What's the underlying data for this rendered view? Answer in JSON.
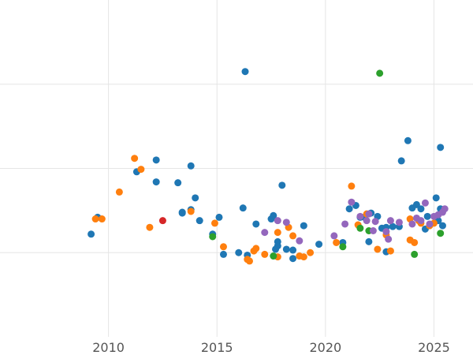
{
  "chart_data": {
    "type": "scatter",
    "title": "",
    "xlabel": "",
    "ylabel": "",
    "xlim": [
      2005,
      2026.8
    ],
    "ylim": [
      -1.0,
      3.0
    ],
    "xticks": [
      2010,
      2015,
      2020,
      2025
    ],
    "xtick_labels": [
      "2010",
      "2015",
      "2020",
      "2025"
    ],
    "ygrid": [
      0.0,
      1.0,
      2.0
    ],
    "grid": true,
    "legend": "none",
    "colors": {
      "blue": "#1f77b4",
      "orange": "#ff7f0e",
      "green": "#2ca02c",
      "red": "#d62728",
      "purple": "#9467bd"
    },
    "series": [
      {
        "name": "blue",
        "color": "#1f77b4",
        "x": [
          2009.2,
          2009.5,
          2011.3,
          2012.2,
          2012.2,
          2013.2,
          2013.4,
          2013.4,
          2013.8,
          2013.8,
          2014.0,
          2014.2,
          2014.8,
          2015.1,
          2015.3,
          2016.0,
          2016.2,
          2016.3,
          2016.4,
          2016.8,
          2017.5,
          2017.6,
          2017.7,
          2017.8,
          2017.8,
          2018.0,
          2018.2,
          2018.5,
          2018.5,
          2019.0,
          2019.7,
          2020.8,
          2021.1,
          2021.4,
          2021.6,
          2021.8,
          2022.0,
          2022.1,
          2022.4,
          2022.6,
          2022.8,
          2022.8,
          2023.1,
          2023.4,
          2023.5,
          2023.8,
          2024.0,
          2024.2,
          2024.4,
          2024.6,
          2024.7,
          2025.1,
          2025.2,
          2025.3,
          2025.3,
          2025.4
        ],
        "y": [
          0.22,
          0.42,
          0.96,
          1.1,
          0.84,
          0.83,
          0.47,
          0.48,
          0.51,
          1.03,
          0.65,
          0.38,
          0.22,
          0.42,
          -0.02,
          0.0,
          0.53,
          2.15,
          -0.03,
          0.34,
          0.4,
          0.44,
          0.04,
          0.13,
          0.08,
          0.8,
          0.04,
          -0.07,
          0.03,
          0.32,
          0.1,
          0.12,
          0.52,
          0.56,
          0.42,
          0.42,
          0.13,
          0.47,
          0.43,
          0.29,
          0.01,
          0.3,
          0.31,
          0.31,
          1.09,
          1.33,
          0.53,
          0.57,
          0.52,
          0.28,
          0.43,
          0.65,
          0.38,
          1.25,
          0.52,
          0.32
        ]
      },
      {
        "name": "orange",
        "color": "#ff7f0e",
        "x": [
          2009.4,
          2009.7,
          2010.5,
          2011.2,
          2011.5,
          2011.9,
          2013.8,
          2014.9,
          2015.3,
          2016.4,
          2016.5,
          2016.7,
          2016.8,
          2017.2,
          2017.8,
          2017.8,
          2018.3,
          2018.5,
          2018.8,
          2019.0,
          2019.3,
          2020.5,
          2021.2,
          2021.5,
          2021.9,
          2022.4,
          2022.8,
          2023.0,
          2023.9,
          2023.9,
          2024.1,
          2024.3,
          2024.4,
          2024.8,
          2025.0
        ],
        "y": [
          0.4,
          0.4,
          0.72,
          1.12,
          0.99,
          0.3,
          0.49,
          0.35,
          0.07,
          -0.08,
          -0.1,
          0.02,
          0.05,
          -0.02,
          0.24,
          -0.05,
          0.3,
          0.2,
          -0.04,
          -0.05,
          0.0,
          0.12,
          0.79,
          0.33,
          0.46,
          0.04,
          0.21,
          0.02,
          0.4,
          0.15,
          0.12,
          0.38,
          0.35,
          0.32,
          0.35
        ]
      },
      {
        "name": "green",
        "color": "#2ca02c",
        "x": [
          2014.8,
          2017.6,
          2020.8,
          2021.6,
          2022.0,
          2022.5,
          2024.1,
          2025.3
        ],
        "y": [
          0.19,
          -0.04,
          0.07,
          0.29,
          0.26,
          2.13,
          -0.02,
          0.23
        ]
      },
      {
        "name": "red",
        "color": "#d62728",
        "x": [
          2012.5
        ],
        "y": [
          0.38
        ]
      },
      {
        "name": "purple",
        "color": "#9467bd",
        "x": [
          2017.2,
          2017.8,
          2018.2,
          2018.8,
          2020.4,
          2020.9,
          2021.2,
          2021.6,
          2021.9,
          2022.0,
          2022.2,
          2022.3,
          2022.8,
          2022.9,
          2023.0,
          2023.4,
          2024.0,
          2024.2,
          2024.4,
          2024.6,
          2024.8,
          2025.0,
          2025.2,
          2025.4,
          2025.5
        ],
        "y": [
          0.24,
          0.38,
          0.36,
          0.14,
          0.2,
          0.34,
          0.6,
          0.43,
          0.38,
          0.46,
          0.26,
          0.37,
          0.25,
          0.16,
          0.38,
          0.36,
          0.34,
          0.41,
          0.38,
          0.59,
          0.34,
          0.43,
          0.45,
          0.48,
          0.52
        ]
      }
    ]
  }
}
